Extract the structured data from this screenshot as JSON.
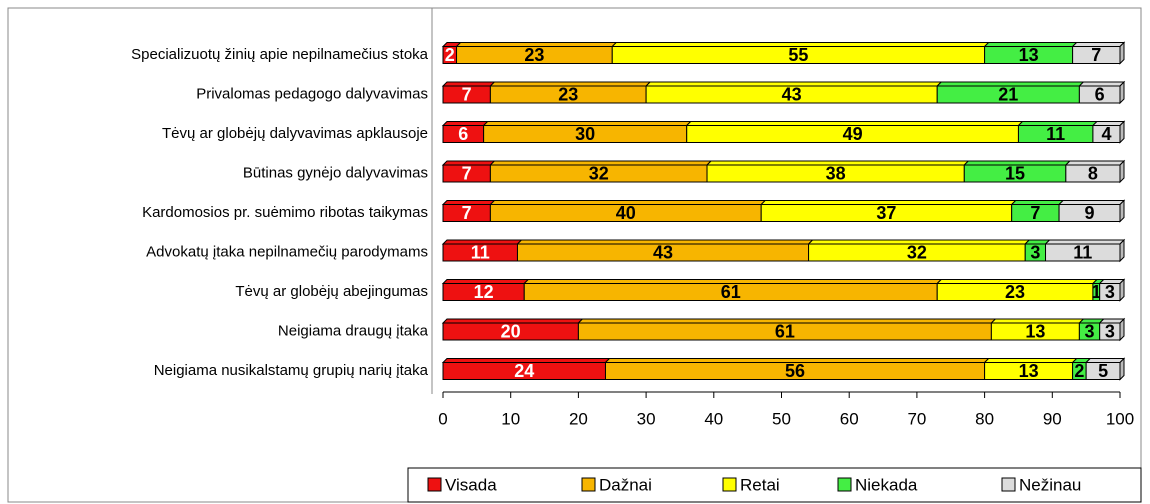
{
  "chart_data": {
    "type": "stacked_bar_horizontal",
    "categories": [
      "Specializuotų žinių apie nepilnamečius stoka",
      "Privalomas pedagogo dalyvavimas",
      "Tėvų ar globėjų dalyvavimas apklausoje",
      "Būtinas gynėjo dalyvavimas",
      "Kardomosios pr. suėmimo ribotas taikymas",
      "Advokatų įtaka nepilnamečių parodymams",
      "Tėvų ar globėjų abejingumas",
      "Neigiama draugų įtaka",
      "Neigiama nusikalstamų grupių narių įtaka"
    ],
    "series": [
      {
        "name": "Visada",
        "color": "#ee1111",
        "values": [
          2,
          7,
          6,
          7,
          7,
          11,
          12,
          20,
          24
        ]
      },
      {
        "name": "Dažnai",
        "color": "#f7b500",
        "values": [
          23,
          23,
          30,
          32,
          40,
          43,
          61,
          61,
          56
        ]
      },
      {
        "name": "Retai",
        "color": "#ffff00",
        "values": [
          55,
          43,
          49,
          38,
          37,
          32,
          23,
          13,
          13
        ]
      },
      {
        "name": "Niekada",
        "color": "#44ee44",
        "values": [
          13,
          21,
          11,
          15,
          7,
          3,
          1,
          3,
          2
        ]
      },
      {
        "name": "Nežinau",
        "color": "#dcdcdc",
        "values": [
          7,
          6,
          4,
          8,
          9,
          11,
          3,
          3,
          5
        ]
      }
    ],
    "xlim": [
      0,
      100
    ],
    "xticks": [
      0,
      10,
      20,
      30,
      40,
      50,
      60,
      70,
      80,
      90,
      100
    ],
    "legend": "bottom"
  }
}
